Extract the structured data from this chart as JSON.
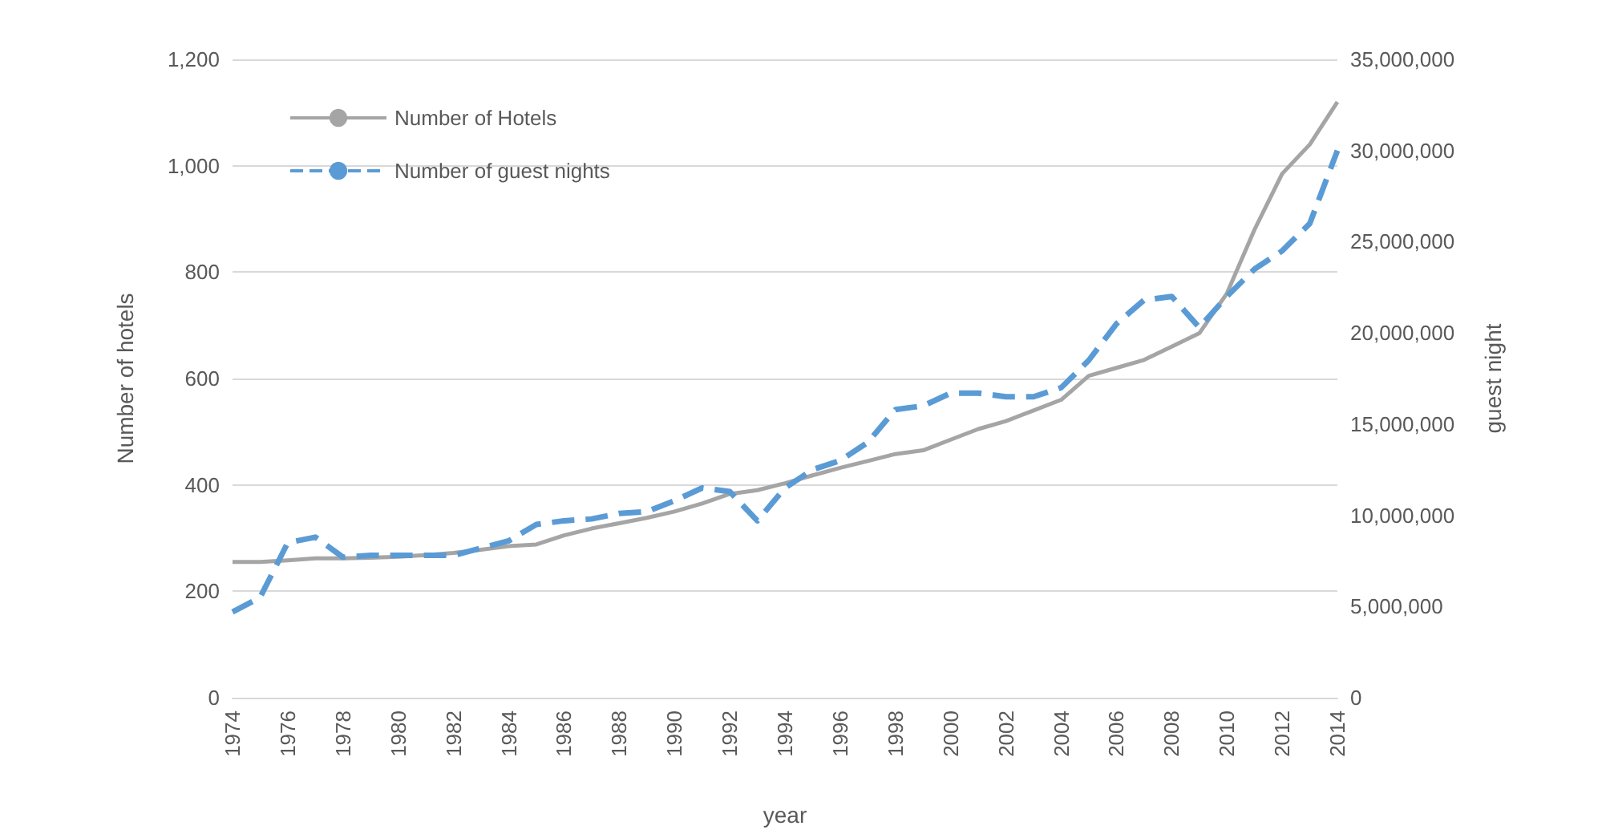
{
  "chart_data": {
    "type": "line",
    "xlabel": "year",
    "ylabel": "Number of hotels",
    "y2label": "guest night",
    "categories": [
      "1974",
      null,
      "1976",
      null,
      "1978",
      null,
      "1980",
      null,
      "1982",
      null,
      "1984",
      null,
      "1986",
      null,
      "1988",
      null,
      "1990",
      null,
      "1992",
      null,
      "1994",
      null,
      "1996",
      null,
      "1998",
      null,
      "2000",
      null,
      "2002",
      null,
      "2004",
      null,
      "2006",
      null,
      "2008",
      null,
      "2010",
      null,
      "2012",
      null,
      "2014"
    ],
    "series": [
      {
        "name": "Number of Hotels",
        "color": "#a5a5a5",
        "line_style": "solid",
        "values": [
          255,
          255,
          258,
          262,
          262,
          263,
          265,
          268,
          272,
          278,
          285,
          288,
          305,
          318,
          328,
          338,
          350,
          365,
          383,
          390,
          403,
          418,
          432,
          445,
          458,
          465,
          485,
          505,
          520,
          540,
          560,
          605,
          620,
          635,
          660,
          685,
          760,
          880,
          985,
          1040,
          1120
        ]
      },
      {
        "name": "Number of guest nights",
        "color": "#5b9bd5",
        "line_style": "dashed",
        "axis": "y2",
        "values": [
          4700000,
          5500000,
          8500000,
          8800000,
          7700000,
          7800000,
          7800000,
          7800000,
          7800000,
          8200000,
          8600000,
          9500000,
          9700000,
          9800000,
          10100000,
          10200000,
          10800000,
          11500000,
          11300000,
          9700000,
          11500000,
          12500000,
          13000000,
          14000000,
          15800000,
          16000000,
          16700000,
          16700000,
          16500000,
          16500000,
          17000000,
          18500000,
          20500000,
          21800000,
          22000000,
          20300000,
          22000000,
          23500000,
          24500000,
          26000000,
          30000000
        ]
      }
    ],
    "ylim": [
      0,
      1200
    ],
    "yticks": [
      0,
      {
        "value": 200,
        "label": "200"
      },
      {
        "value": 400,
        "label": "400"
      },
      {
        "value": 600,
        "label": "600"
      },
      {
        "value": 800,
        "label": "800"
      },
      {
        "value": 1000,
        "label": "1,000"
      },
      {
        "value": 1200,
        "label": "1,200"
      }
    ],
    "y2lim": [
      0,
      35000000
    ],
    "y2ticks": [
      0,
      {
        "value": 5000000,
        "label": "5,000,000"
      },
      {
        "value": 10000000,
        "label": "10,000,000"
      },
      {
        "value": 15000000,
        "label": "15,000,000"
      },
      {
        "value": 20000000,
        "label": "20,000,000"
      },
      {
        "value": 25000000,
        "label": "25,000,000"
      },
      {
        "value": 30000000,
        "label": "30,000,000"
      },
      {
        "value": 35000000,
        "label": "35,000,000"
      }
    ],
    "grid": "y",
    "legend": "top left",
    "marker": "none"
  }
}
